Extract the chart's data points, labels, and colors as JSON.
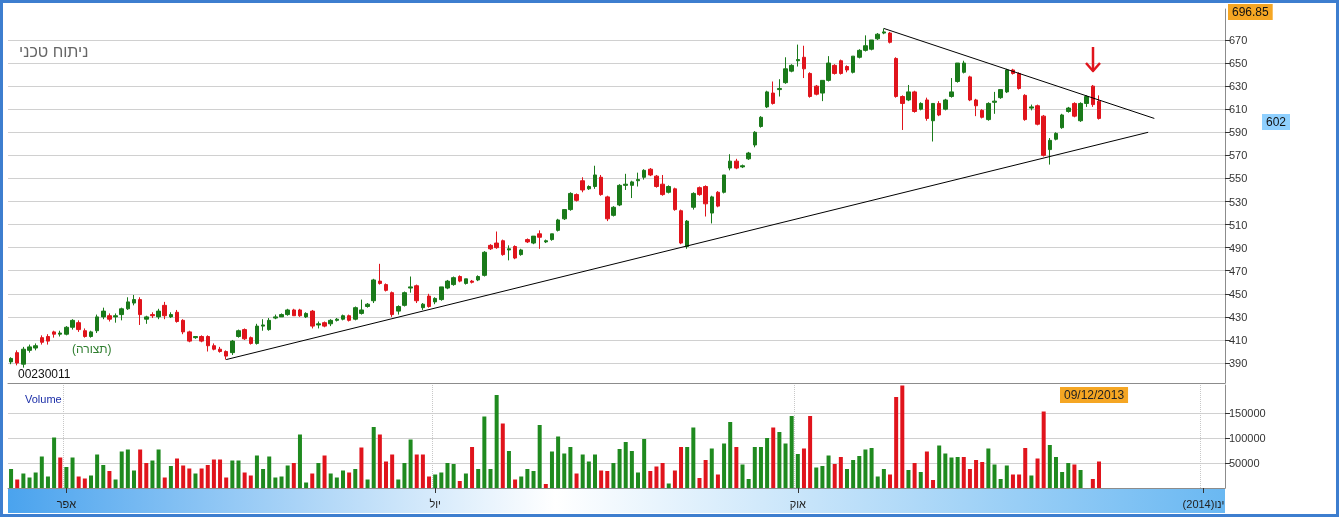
{
  "chart_data": [
    {
      "type": "candlestick",
      "title": "ניתוח טכני",
      "categories": [
        null,
        null,
        null,
        null,
        null,
        null,
        null,
        null,
        null,
        null,
        null,
        null,
        null,
        null,
        null,
        null,
        null,
        null,
        null,
        null,
        null,
        null,
        null,
        null,
        null,
        null,
        null,
        null,
        null,
        null,
        null,
        null,
        null,
        null,
        null,
        null,
        null,
        null,
        null,
        null,
        null,
        null,
        null,
        null,
        null,
        null,
        null,
        null,
        null,
        null,
        null,
        null,
        null,
        null,
        null,
        null,
        null,
        null,
        null,
        null,
        null,
        null,
        null,
        null,
        null,
        null,
        null,
        null,
        null,
        null,
        null,
        null,
        null,
        null,
        null,
        null,
        null,
        null,
        null,
        null,
        null,
        null,
        null,
        null,
        null,
        null,
        null,
        null,
        null,
        null,
        null,
        null,
        null,
        null,
        null,
        null,
        null,
        null,
        null,
        null,
        null,
        null,
        null,
        null,
        null,
        null,
        null,
        null,
        null,
        null,
        null,
        null,
        null,
        null,
        null,
        null,
        null,
        null,
        null,
        null,
        null,
        null,
        null,
        null,
        null,
        null,
        null,
        null,
        null,
        null,
        null,
        null,
        null,
        null,
        null,
        null,
        null,
        null,
        null,
        null,
        null,
        null,
        null,
        null,
        null,
        null,
        null,
        null,
        null,
        null,
        null,
        null,
        null,
        null,
        null,
        null,
        null,
        null,
        null,
        null,
        null,
        null,
        null,
        null,
        null,
        null,
        null,
        null,
        null,
        null,
        null,
        null,
        null,
        null,
        null,
        null,
        null,
        null,
        null,
        null,
        null,
        null,
        null,
        null,
        null,
        null,
        null,
        null,
        null,
        null,
        null,
        null,
        null,
        null,
        null,
        null,
        null,
        null
      ],
      "ohlc": [
        [
          391,
          395,
          389,
          394
        ],
        [
          399,
          401,
          388,
          390
        ],
        [
          389,
          404,
          386,
          402
        ],
        [
          401,
          406,
          399,
          404
        ],
        [
          403,
          407,
          401,
          405
        ],
        [
          412,
          414,
          406,
          408
        ],
        [
          413,
          415,
          406,
          409
        ],
        [
          417,
          418,
          412,
          415
        ],
        [
          415,
          418,
          413,
          416
        ],
        [
          415,
          422,
          414,
          421
        ],
        [
          421,
          428,
          419,
          427
        ],
        [
          425,
          427,
          417,
          419
        ],
        [
          418,
          420,
          412,
          413
        ],
        [
          413,
          418,
          412,
          417
        ],
        [
          418,
          432,
          416,
          430
        ],
        [
          430,
          438,
          428,
          435
        ],
        [
          431,
          433,
          426,
          428
        ],
        [
          430,
          433,
          425,
          431
        ],
        [
          432,
          438,
          427,
          437
        ],
        [
          437,
          447,
          436,
          443
        ],
        [
          442,
          449,
          440,
          445
        ],
        [
          445,
          447,
          423,
          432
        ],
        [
          428,
          431,
          424,
          430
        ],
        [
          432,
          434,
          429,
          431
        ],
        [
          430,
          437,
          428,
          435
        ],
        [
          440,
          443,
          428,
          431
        ],
        [
          430,
          434,
          429,
          432
        ],
        [
          434,
          436,
          425,
          426
        ],
        [
          427,
          428,
          415,
          417
        ],
        [
          417,
          418,
          408,
          409
        ],
        [
          412,
          413,
          411,
          413
        ],
        [
          413,
          414,
          408,
          409
        ],
        [
          413,
          414,
          400,
          405
        ],
        [
          405,
          407,
          401,
          402
        ],
        [
          402,
          404,
          399,
          400
        ],
        [
          400,
          401,
          393,
          396
        ],
        [
          399,
          410,
          397,
          409
        ],
        [
          413,
          419,
          412,
          418
        ],
        [
          419,
          420,
          410,
          411
        ],
        [
          412,
          413,
          406,
          407
        ],
        [
          407,
          424,
          406,
          422
        ],
        [
          422,
          428,
          418,
          423
        ],
        [
          419,
          429,
          418,
          427
        ],
        [
          429,
          432,
          428,
          430
        ],
        [
          430,
          433,
          430,
          432
        ],
        [
          432,
          437,
          431,
          436
        ],
        [
          436,
          437,
          431,
          431
        ],
        [
          436,
          437,
          430,
          431
        ],
        [
          430,
          434,
          429,
          433
        ],
        [
          435,
          436,
          420,
          422
        ],
        [
          423,
          426,
          420,
          424
        ],
        [
          425,
          426,
          421,
          422
        ],
        [
          424,
          428,
          422,
          427
        ],
        [
          427,
          429,
          426,
          428
        ],
        [
          428,
          432,
          427,
          431
        ],
        [
          431,
          432,
          426,
          427
        ],
        [
          428,
          439,
          427,
          438
        ],
        [
          433,
          445,
          432,
          436
        ],
        [
          439,
          442,
          438,
          441
        ],
        [
          444,
          463,
          442,
          462
        ],
        [
          461,
          476,
          458,
          459
        ],
        [
          458,
          459,
          452,
          453
        ],
        [
          451,
          452,
          430,
          432
        ],
        [
          435,
          440,
          432,
          439
        ],
        [
          440,
          452,
          439,
          451
        ],
        [
          455,
          465,
          451,
          456
        ],
        [
          457,
          458,
          442,
          444
        ],
        [
          438,
          442,
          436,
          441
        ],
        [
          448,
          450,
          438,
          439
        ],
        [
          443,
          447,
          441,
          446
        ],
        [
          445,
          456,
          444,
          456
        ],
        [
          455,
          462,
          454,
          461
        ],
        [
          458,
          465,
          457,
          464
        ],
        [
          465,
          466,
          460,
          461
        ],
        [
          459,
          463,
          458,
          463
        ],
        [
          461,
          462,
          459,
          460
        ],
        [
          462,
          466,
          461,
          465
        ],
        [
          466,
          487,
          465,
          486
        ],
        [
          492,
          493,
          488,
          489
        ],
        [
          494,
          504,
          489,
          490
        ],
        [
          496,
          497,
          483,
          484
        ],
        [
          488,
          492,
          479,
          489
        ],
        [
          491,
          492,
          480,
          481
        ],
        [
          484,
          489,
          483,
          488
        ],
        [
          497,
          498,
          494,
          495
        ],
        [
          494,
          500,
          493,
          500
        ],
        [
          502,
          505,
          489,
          499
        ],
        [
          495,
          497,
          494,
          496
        ],
        [
          497,
          502,
          496,
          502
        ],
        [
          505,
          515,
          504,
          514
        ],
        [
          515,
          523,
          514,
          523
        ],
        [
          523,
          538,
          522,
          537
        ],
        [
          536,
          537,
          530,
          531
        ],
        [
          548,
          551,
          538,
          540
        ],
        [
          541,
          544,
          540,
          543
        ],
        [
          543,
          561,
          541,
          553
        ],
        [
          551,
          553,
          535,
          536
        ],
        [
          534,
          535,
          513,
          515
        ],
        [
          518,
          526,
          517,
          525
        ],
        [
          527,
          545,
          526,
          544
        ],
        [
          544,
          554,
          540,
          545
        ],
        [
          544,
          548,
          533,
          547
        ],
        [
          548,
          555,
          543,
          549
        ],
        [
          551,
          558,
          549,
          557
        ],
        [
          558,
          559,
          552,
          553
        ],
        [
          552,
          553,
          542,
          543
        ],
        [
          545,
          553,
          535,
          536
        ],
        [
          538,
          544,
          537,
          543
        ],
        [
          541,
          542,
          522,
          523
        ],
        [
          522,
          523,
          493,
          494
        ],
        [
          491,
          514,
          489,
          513
        ],
        [
          525,
          538,
          523,
          537
        ],
        [
          542,
          543,
          535,
          536
        ],
        [
          543,
          544,
          517,
          528
        ],
        [
          520,
          535,
          511,
          534
        ],
        [
          538,
          539,
          525,
          526
        ],
        [
          538,
          553,
          537,
          553
        ],
        [
          559,
          571,
          557,
          565
        ],
        [
          565,
          567,
          558,
          559
        ],
        [
          560,
          562,
          559,
          561
        ],
        [
          567,
          573,
          566,
          572
        ],
        [
          579,
          591,
          577,
          590
        ],
        [
          595,
          604,
          594,
          603
        ],
        [
          612,
          626,
          611,
          625
        ],
        [
          624,
          634,
          614,
          615
        ],
        [
          627,
          636,
          621,
          628
        ],
        [
          633,
          655,
          632,
          645
        ],
        [
          643,
          649,
          642,
          648
        ],
        [
          652,
          666,
          647,
          653
        ],
        [
          655,
          665,
          637,
          645
        ],
        [
          641,
          642,
          620,
          621
        ],
        [
          630,
          631,
          622,
          623
        ],
        [
          624,
          635,
          617,
          635
        ],
        [
          635,
          656,
          634,
          650
        ],
        [
          648,
          649,
          640,
          641
        ],
        [
          652,
          653,
          640,
          641
        ],
        [
          647,
          648,
          642,
          644
        ],
        [
          642,
          656,
          641,
          656
        ],
        [
          655,
          662,
          654,
          661
        ],
        [
          661,
          674,
          660,
          665
        ],
        [
          662,
          670,
          661,
          670
        ],
        [
          671,
          676,
          670,
          675
        ],
        [
          676,
          680,
          675,
          677
        ],
        [
          676,
          677,
          667,
          668
        ],
        [
          654,
          655,
          620,
          621
        ],
        [
          621,
          622,
          592,
          615
        ],
        [
          618,
          631,
          617,
          625
        ],
        [
          625,
          626,
          607,
          608
        ],
        [
          610,
          616,
          609,
          615
        ],
        [
          618,
          620,
          600,
          602
        ],
        [
          600,
          615,
          582,
          615
        ],
        [
          615,
          617,
          604,
          605
        ],
        [
          610,
          619,
          609,
          618
        ],
        [
          621,
          637,
          620,
          625
        ],
        [
          634,
          650,
          633,
          650
        ],
        [
          642,
          652,
          641,
          650
        ],
        [
          638,
          639,
          617,
          618
        ],
        [
          618,
          619,
          604,
          613
        ],
        [
          609,
          610,
          602,
          603
        ],
        [
          601,
          616,
          600,
          615
        ],
        [
          616,
          625,
          606,
          617
        ],
        [
          620,
          627,
          619,
          627
        ],
        [
          625,
          645,
          624,
          644
        ],
        [
          644,
          645,
          640,
          641
        ],
        [
          641,
          642,
          627,
          628
        ],
        [
          622,
          623,
          600,
          601
        ],
        [
          611,
          614,
          609,
          612
        ],
        [
          613,
          614,
          596,
          597
        ],
        [
          604,
          605,
          569,
          570
        ],
        [
          575,
          585,
          562,
          583
        ],
        [
          584,
          590,
          583,
          589
        ],
        [
          594,
          606,
          593,
          605
        ],
        [
          608,
          612,
          607,
          611
        ],
        [
          615,
          616,
          603,
          604
        ],
        [
          600,
          616,
          599,
          615
        ],
        [
          615,
          622,
          612,
          621
        ],
        [
          630,
          631,
          612,
          614
        ],
        [
          617,
          622,
          601,
          602
        ],
        null,
        null,
        null,
        null,
        null,
        null,
        null,
        null,
        null,
        null,
        null,
        null,
        null,
        null,
        null,
        null,
        null,
        null,
        null,
        null
      ],
      "colors": [
        "#1a7a1a",
        "#e0141c",
        "#1a7a1a",
        "#1a7a1a",
        "#1a7a1a",
        "#e0141c",
        "#e0141c",
        "#e0141c",
        "#1a7a1a",
        "#1a7a1a",
        "#1a7a1a",
        "#e0141c",
        "#e0141c",
        "#1a7a1a",
        "#1a7a1a",
        "#1a7a1a",
        "#e0141c",
        "#1a7a1a",
        "#1a7a1a",
        "#1a7a1a",
        "#1a7a1a",
        "#e0141c",
        "#1a7a1a",
        "#e0141c",
        "#1a7a1a",
        "#e0141c",
        "#1a7a1a",
        "#e0141c",
        "#e0141c",
        "#e0141c",
        "#1a7a1a",
        "#e0141c",
        "#e0141c",
        "#e0141c",
        "#e0141c",
        "#e0141c",
        "#1a7a1a",
        "#1a7a1a",
        "#e0141c",
        "#e0141c",
        "#1a7a1a",
        "#1a7a1a",
        "#1a7a1a",
        "#1a7a1a",
        "#1a7a1a",
        "#1a7a1a",
        "#e0141c",
        "#e0141c",
        "#1a7a1a",
        "#e0141c",
        "#1a7a1a",
        "#e0141c",
        "#1a7a1a",
        "#1a7a1a",
        "#1a7a1a",
        "#e0141c",
        "#1a7a1a",
        "#1a7a1a",
        "#1a7a1a",
        "#1a7a1a",
        "#e0141c",
        "#e0141c",
        "#e0141c",
        "#1a7a1a",
        "#1a7a1a",
        "#1a7a1a",
        "#e0141c",
        "#1a7a1a",
        "#e0141c",
        "#1a7a1a",
        "#1a7a1a",
        "#1a7a1a",
        "#1a7a1a",
        "#e0141c",
        "#1a7a1a",
        "#e0141c",
        "#1a7a1a",
        "#1a7a1a",
        "#e0141c",
        "#e0141c",
        "#e0141c",
        "#1a7a1a",
        "#e0141c",
        "#1a7a1a",
        "#e0141c",
        "#1a7a1a",
        "#e0141c",
        "#1a7a1a",
        "#1a7a1a",
        "#1a7a1a",
        "#1a7a1a",
        "#1a7a1a",
        "#e0141c",
        "#e0141c",
        "#1a7a1a",
        "#1a7a1a",
        "#e0141c",
        "#e0141c",
        "#1a7a1a",
        "#1a7a1a",
        "#1a7a1a",
        "#1a7a1a",
        "#1a7a1a",
        "#1a7a1a",
        "#e0141c",
        "#e0141c",
        "#e0141c",
        "#1a7a1a",
        "#e0141c",
        "#e0141c",
        "#1a7a1a",
        "#1a7a1a",
        "#e0141c",
        "#e0141c",
        "#1a7a1a",
        "#e0141c",
        "#1a7a1a",
        "#1a7a1a",
        "#e0141c",
        "#1a7a1a",
        "#1a7a1a",
        "#1a7a1a",
        "#1a7a1a",
        "#1a7a1a",
        "#e0141c",
        "#1a7a1a",
        "#1a7a1a",
        "#1a7a1a",
        "#1a7a1a",
        "#e0141c",
        "#e0141c",
        "#e0141c",
        "#1a7a1a",
        "#1a7a1a",
        "#e0141c",
        "#e0141c",
        "#e0141c",
        "#1a7a1a",
        "#1a7a1a",
        "#1a7a1a",
        "#1a7a1a",
        "#1a7a1a",
        "#1a7a1a",
        "#e0141c",
        "#e0141c",
        "#e0141c",
        "#1a7a1a",
        "#e0141c",
        "#1a7a1a",
        "#e0141c",
        "#1a7a1a",
        "#e0141c",
        "#1a7a1a",
        "#1a7a1a",
        "#1a7a1a",
        "#1a7a1a",
        "#e0141c",
        "#e0141c",
        "#e0141c",
        "#1a7a1a",
        "#1a7a1a",
        "#1a7a1a",
        "#1a7a1a",
        "#e0141c",
        "#e0141c",
        "#e0141c",
        "#1a7a1a",
        "#e0141c",
        "#e0141c",
        "#1a7a1a",
        "#1a7a1a",
        "#1a7a1a",
        "#1a7a1a",
        "#e0141c",
        "#1a7a1a",
        "#1a7a1a",
        "#e0141c",
        "#e0141c",
        null,
        null,
        null,
        null,
        null,
        null,
        null,
        null,
        null,
        null,
        null,
        null,
        null,
        null,
        null,
        null,
        null,
        null,
        null,
        null
      ],
      "series": [
        {
          "type": "line",
          "color": "#000000",
          "values": [
            null,
            null,
            null,
            null,
            null,
            null,
            null,
            null,
            null,
            null,
            null,
            null,
            null,
            null,
            null,
            null,
            null,
            null,
            null,
            null,
            null,
            null,
            null,
            null,
            null,
            null,
            null,
            null,
            null,
            null,
            null,
            null,
            null,
            null,
            null,
            null,
            null,
            null,
            null,
            null,
            null,
            null,
            null,
            null,
            null,
            null,
            null,
            null,
            null,
            null,
            null,
            null,
            null,
            null,
            null,
            null,
            null,
            null,
            null,
            null,
            null,
            null,
            null,
            null,
            null,
            null,
            null,
            null,
            null,
            null,
            null,
            null,
            null,
            null,
            null,
            null,
            null,
            null,
            null,
            null,
            null,
            null,
            null,
            null,
            null,
            null,
            null,
            null,
            null,
            null,
            null,
            null,
            null,
            null,
            null,
            null,
            null,
            null,
            null,
            null,
            null,
            null,
            null,
            null,
            null,
            null,
            null,
            null,
            null,
            null,
            null,
            null,
            null,
            null,
            null,
            null,
            null,
            null,
            null,
            null,
            null,
            null,
            null,
            null,
            null,
            null,
            null,
            null,
            null,
            null,
            null,
            null,
            null,
            null,
            null,
            null,
            null,
            null,
            null,
            null,
            null,
            null,
            680,
            null,
            null,
            null,
            null,
            null,
            null,
            null,
            null,
            null,
            null,
            null,
            null,
            null,
            null,
            null,
            null,
            null,
            null,
            null,
            null,
            null,
            null,
            null,
            null,
            null,
            null,
            null,
            null,
            null,
            null,
            null,
            null,
            null,
            null,
            null,
            null,
            null,
            null,
            null,
            null,
            null,
            null,
            null,
            602,
            null,
            null,
            null,
            null,
            null,
            null,
            null,
            null,
            null,
            null,
            null
          ]
        },
        {
          "type": "line",
          "color": "#000000",
          "values": [
            null,
            null,
            null,
            null,
            null,
            null,
            null,
            null,
            null,
            null,
            null,
            null,
            null,
            null,
            null,
            null,
            null,
            null,
            null,
            null,
            null,
            null,
            null,
            null,
            null,
            null,
            null,
            null,
            null,
            null,
            null,
            null,
            null,
            null,
            null,
            393,
            null,
            null,
            null,
            null,
            null,
            null,
            null,
            null,
            null,
            null,
            null,
            null,
            null,
            null,
            null,
            null,
            null,
            null,
            null,
            null,
            null,
            null,
            null,
            null,
            null,
            null,
            null,
            null,
            null,
            null,
            null,
            null,
            null,
            null,
            null,
            null,
            null,
            null,
            null,
            null,
            null,
            null,
            null,
            null,
            null,
            null,
            null,
            null,
            null,
            null,
            null,
            null,
            null,
            null,
            null,
            null,
            null,
            null,
            null,
            null,
            null,
            null,
            null,
            null,
            null,
            null,
            null,
            null,
            null,
            null,
            null,
            null,
            null,
            null,
            null,
            null,
            null,
            null,
            null,
            null,
            null,
            null,
            null,
            null,
            null,
            null,
            null,
            null,
            null,
            null,
            null,
            null,
            null,
            null,
            null,
            null,
            null,
            null,
            null,
            null,
            null,
            null,
            null,
            null,
            null,
            null,
            null,
            null,
            null,
            null,
            null,
            null,
            null,
            null,
            null,
            null,
            null,
            null,
            null,
            null,
            null,
            null,
            null,
            null,
            null,
            null,
            null,
            null,
            null,
            null,
            null,
            null,
            null,
            null,
            null,
            null,
            null,
            null,
            null,
            null,
            null,
            null,
            null,
            null,
            null,
            null,
            null,
            null,
            null,
            590,
            null,
            null,
            null,
            null,
            null,
            null,
            null,
            null,
            null,
            null,
            null,
            null
          ]
        }
      ],
      "ylim": [
        372.7,
        696.85
      ],
      "yticks": [
        390,
        410,
        430,
        450,
        470,
        490,
        510,
        530,
        550,
        570,
        590,
        610,
        630,
        650,
        670
      ],
      "grid": "y",
      "tick_labels": "y",
      "annotations": [
        "(תצורה)",
        "00230011",
        "696.85",
        "602"
      ]
    },
    {
      "type": "bar",
      "title": "Volume",
      "categories": [
        null,
        null,
        null,
        null,
        null,
        null,
        null,
        null,
        null,
        "אפר",
        null,
        null,
        null,
        null,
        null,
        null,
        null,
        null,
        null,
        null,
        null,
        null,
        null,
        null,
        null,
        null,
        null,
        null,
        null,
        null,
        null,
        null,
        null,
        null,
        null,
        null,
        null,
        null,
        null,
        null,
        null,
        null,
        null,
        null,
        null,
        null,
        null,
        null,
        null,
        null,
        null,
        null,
        null,
        null,
        null,
        null,
        null,
        null,
        null,
        null,
        null,
        null,
        null,
        null,
        null,
        null,
        null,
        null,
        null,
        "יול",
        null,
        null,
        null,
        null,
        null,
        null,
        null,
        null,
        null,
        null,
        null,
        null,
        null,
        null,
        null,
        null,
        null,
        null,
        null,
        null,
        null,
        null,
        null,
        null,
        null,
        null,
        null,
        null,
        null,
        null,
        null,
        null,
        null,
        null,
        null,
        null,
        null,
        null,
        null,
        null,
        null,
        null,
        null,
        null,
        null,
        null,
        null,
        null,
        null,
        null,
        null,
        null,
        null,
        null,
        null,
        null,
        null,
        null,
        "אוק",
        null,
        null,
        null,
        null,
        null,
        null,
        null,
        null,
        null,
        null,
        null,
        null,
        null,
        null,
        null,
        null,
        null,
        null,
        null,
        null,
        null,
        null,
        null,
        null,
        null,
        null,
        null,
        null,
        null,
        null,
        null,
        null,
        null,
        null,
        null,
        null,
        null,
        null,
        null,
        null,
        null,
        null,
        null,
        null,
        null,
        null,
        null,
        null,
        null,
        null,
        null,
        null,
        null,
        null,
        null,
        null,
        null,
        null,
        null,
        null,
        null,
        null,
        null,
        null,
        null,
        "(2014)ינו",
        null,
        null,
        null
      ],
      "values": [
        38000,
        17000,
        29000,
        21000,
        31000,
        63000,
        23000,
        101000,
        61000,
        42000,
        61000,
        23000,
        19000,
        25000,
        67000,
        46000,
        34000,
        17000,
        73000,
        77000,
        35000,
        77000,
        50000,
        55000,
        77000,
        21000,
        44000,
        59000,
        45000,
        39000,
        29000,
        39000,
        46000,
        57000,
        57000,
        21000,
        55000,
        55000,
        31000,
        25000,
        65000,
        38000,
        63000,
        21000,
        23000,
        45000,
        50000,
        107000,
        11000,
        29000,
        50000,
        65000,
        29000,
        21000,
        35000,
        31000,
        38000,
        81000,
        17000,
        122000,
        107000,
        53000,
        67000,
        17000,
        50000,
        97000,
        67000,
        67000,
        23000,
        27000,
        31000,
        50000,
        48000,
        14000,
        29000,
        82000,
        38000,
        143000,
        38000,
        186000,
        129000,
        74000,
        17000,
        23000,
        38000,
        34000,
        126000,
        8000,
        73000,
        103000,
        69000,
        82000,
        29000,
        67000,
        53000,
        67000,
        35000,
        34000,
        50000,
        78000,
        92000,
        74000,
        31000,
        98000,
        34000,
        43000,
        50000,
        9000,
        35000,
        82000,
        82000,
        121000,
        20000,
        56000,
        79000,
        27000,
        89000,
        132000,
        82000,
        47000,
        18000,
        82000,
        82000,
        100000,
        121000,
        112000,
        89000,
        144000,
        68000,
        79000,
        144000,
        41000,
        44000,
        65000,
        48000,
        62000,
        38000,
        56000,
        64000,
        77000,
        80000,
        23000,
        38000,
        27000,
        182000,
        205000,
        36000,
        50000,
        32000,
        73000,
        16000,
        85000,
        69000,
        61000,
        62000,
        62000,
        38000,
        56000,
        52000,
        79000,
        47000,
        18000,
        45000,
        27000,
        27000,
        80000,
        25000,
        59000,
        153000,
        86000,
        62000,
        32000,
        50000,
        47000,
        36000,
        null,
        18000,
        53000,
        null,
        null,
        null,
        null,
        null,
        null,
        null,
        null,
        null,
        null,
        null,
        null,
        null,
        null,
        null,
        null,
        null,
        null,
        null,
        null
      ],
      "colors": [
        "#1f8a1f",
        "#e0141c",
        "#1f8a1f",
        "#1f8a1f",
        "#1f8a1f",
        "#1f8a1f",
        "#1f8a1f",
        "#1f8a1f",
        "#e0141c",
        "#1f8a1f",
        "#1f8a1f",
        "#e0141c",
        "#e0141c",
        "#1f8a1f",
        "#1f8a1f",
        "#1f8a1f",
        "#e0141c",
        "#1f8a1f",
        "#1f8a1f",
        "#1f8a1f",
        "#1f8a1f",
        "#e0141c",
        "#e0141c",
        "#1f8a1f",
        "#1f8a1f",
        "#e0141c",
        "#1f8a1f",
        "#e0141c",
        "#e0141c",
        "#e0141c",
        "#1f8a1f",
        "#e0141c",
        "#e0141c",
        "#e0141c",
        "#e0141c",
        "#e0141c",
        "#1f8a1f",
        "#1f8a1f",
        "#e0141c",
        "#e0141c",
        "#1f8a1f",
        "#1f8a1f",
        "#1f8a1f",
        "#1f8a1f",
        "#1f8a1f",
        "#1f8a1f",
        "#e0141c",
        "#1f8a1f",
        "#1f8a1f",
        "#e0141c",
        "#1f8a1f",
        "#e0141c",
        "#1f8a1f",
        "#1f8a1f",
        "#1f8a1f",
        "#e0141c",
        "#1f8a1f",
        "#e0141c",
        "#1f8a1f",
        "#1f8a1f",
        "#e0141c",
        "#e0141c",
        "#e0141c",
        "#1f8a1f",
        "#1f8a1f",
        "#1f8a1f",
        "#e0141c",
        "#e0141c",
        "#e0141c",
        "#1f8a1f",
        "#1f8a1f",
        "#1f8a1f",
        "#1f8a1f",
        "#e0141c",
        "#1f8a1f",
        "#e0141c",
        "#1f8a1f",
        "#1f8a1f",
        "#1f8a1f",
        "#1f8a1f",
        "#e0141c",
        "#1f8a1f",
        "#e0141c",
        "#1f8a1f",
        "#1f8a1f",
        "#1f8a1f",
        "#1f8a1f",
        "#e0141c",
        "#1f8a1f",
        "#1f8a1f",
        "#1f8a1f",
        "#1f8a1f",
        "#e0141c",
        "#1f8a1f",
        "#1f8a1f",
        "#1f8a1f",
        "#e0141c",
        "#e0141c",
        "#1f8a1f",
        "#1f8a1f",
        "#1f8a1f",
        "#1f8a1f",
        "#1f8a1f",
        "#1f8a1f",
        "#e0141c",
        "#e0141c",
        "#e0141c",
        "#1f8a1f",
        "#e0141c",
        "#e0141c",
        "#1f8a1f",
        "#1f8a1f",
        "#e0141c",
        "#e0141c",
        "#1f8a1f",
        "#e0141c",
        "#1f8a1f",
        "#1f8a1f",
        "#e0141c",
        "#1f8a1f",
        "#1f8a1f",
        "#1f8a1f",
        "#1f8a1f",
        "#1f8a1f",
        "#e0141c",
        "#1f8a1f",
        "#1f8a1f",
        "#1f8a1f",
        "#1f8a1f",
        "#e0141c",
        "#e0141c",
        "#1f8a1f",
        "#1f8a1f",
        "#1f8a1f",
        "#e0141c",
        "#e0141c",
        "#1f8a1f",
        "#1f8a1f",
        "#1f8a1f",
        "#1f8a1f",
        "#1f8a1f",
        "#1f8a1f",
        "#1f8a1f",
        "#e0141c",
        "#e0141c",
        "#e0141c",
        "#1f8a1f",
        "#e0141c",
        "#1f8a1f",
        "#e0141c",
        "#e0141c",
        "#1f8a1f",
        "#1f8a1f",
        "#1f8a1f",
        "#1f8a1f",
        "#e0141c",
        "#e0141c",
        "#e0141c",
        "#e0141c",
        "#1f8a1f",
        "#1f8a1f",
        "#1f8a1f",
        "#1f8a1f",
        "#e0141c",
        "#e0141c",
        "#e0141c",
        "#1f8a1f",
        "#e0141c",
        "#e0141c",
        "#1f8a1f",
        "#1f8a1f",
        "#1f8a1f",
        "#1f8a1f",
        "#e0141c",
        "#1f8a1f",
        "#1f8a1f",
        "#e0141c",
        "#e0141c",
        null,
        null,
        null,
        null,
        null,
        null,
        null,
        null,
        null,
        null,
        null,
        null,
        null,
        null,
        null,
        null,
        null,
        null,
        null,
        null
      ],
      "ylim": [
        0,
        206000
      ],
      "yticks": [
        50000,
        100000,
        150000
      ],
      "grid": true,
      "annotations": [
        "09/12/2013"
      ]
    }
  ]
}
